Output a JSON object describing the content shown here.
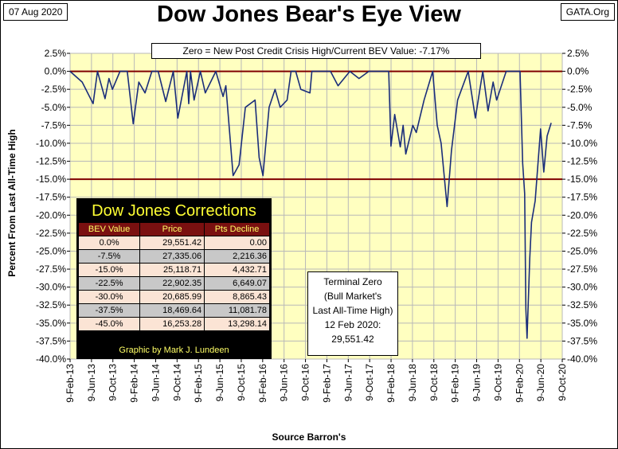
{
  "header": {
    "date": "07 Aug 2020",
    "title": "Dow Jones Bear's Eye View",
    "site": "GATA.Org"
  },
  "chart_data": {
    "type": "line",
    "title": "Dow Jones Bear's Eye View",
    "subtitle": "Zero = New Post Credit Crisis High/Current BEV Value:  -7.17%",
    "ylabel": "Percent From Last All-Time High",
    "xlabel": "Source Barron's",
    "ylim": [
      -40,
      2.5
    ],
    "y_ticks": [
      "2.5%",
      "0.0%",
      "-2.5%",
      "-5.0%",
      "-7.5%",
      "-10.0%",
      "-12.5%",
      "-15.0%",
      "-17.5%",
      "-20.0%",
      "-22.5%",
      "-25.0%",
      "-27.5%",
      "-30.0%",
      "-32.5%",
      "-35.0%",
      "-37.5%",
      "-40.0%"
    ],
    "y_tick_values": [
      2.5,
      0,
      -2.5,
      -5,
      -7.5,
      -10,
      -12.5,
      -15,
      -17.5,
      -20,
      -22.5,
      -25,
      -27.5,
      -30,
      -32.5,
      -35,
      -37.5,
      -40
    ],
    "x_ticks": [
      "9-Feb-13",
      "9-Jun-13",
      "9-Oct-13",
      "9-Feb-14",
      "9-Jun-14",
      "9-Oct-14",
      "9-Feb-15",
      "9-Jun-15",
      "9-Oct-15",
      "9-Feb-16",
      "9-Jun-16",
      "9-Oct-16",
      "9-Feb-17",
      "9-Jun-17",
      "9-Oct-17",
      "9-Feb-18",
      "9-Jun-18",
      "9-Oct-18",
      "9-Feb-19",
      "9-Jun-19",
      "9-Oct-19",
      "9-Feb-20",
      "9-Jun-20",
      "9-Oct-20"
    ],
    "x_range": [
      "2013-02-09",
      "2020-10-09"
    ],
    "reference_lines": [
      0,
      -15
    ],
    "grid": true,
    "background": "#ffffc0",
    "line_color": "#1a2d7a",
    "ref_line_color": "#800000",
    "series": [
      {
        "x": [
          "2013-02-09",
          "2013-04-19",
          "2013-06-20",
          "2013-07-15",
          "2013-08-27",
          "2013-09-18",
          "2013-10-08",
          "2013-11-20",
          "2013-12-31",
          "2014-02-03",
          "2014-03-07",
          "2014-04-11",
          "2014-05-20",
          "2014-06-25",
          "2014-08-07",
          "2014-09-19",
          "2014-10-15",
          "2014-12-05",
          "2014-12-16",
          "2014-12-26",
          "2015-01-15",
          "2015-02-20",
          "2015-03-20",
          "2015-05-19",
          "2015-06-29",
          "2015-07-15",
          "2015-08-25",
          "2015-09-28",
          "2015-11-03",
          "2015-12-28",
          "2016-01-20",
          "2016-02-11",
          "2016-03-17",
          "2016-04-20",
          "2016-05-19",
          "2016-06-27",
          "2016-07-20",
          "2016-08-15",
          "2016-09-13",
          "2016-11-04",
          "2016-11-15",
          "2017-01-25",
          "2017-03-01",
          "2017-04-13",
          "2017-06-19",
          "2017-08-10",
          "2017-10-05",
          "2017-11-20",
          "2018-01-26",
          "2018-02-08",
          "2018-03-01",
          "2018-04-02",
          "2018-04-18",
          "2018-05-03",
          "2018-06-12",
          "2018-07-02",
          "2018-08-15",
          "2018-10-03",
          "2018-10-29",
          "2018-11-20",
          "2018-12-24",
          "2019-01-18",
          "2019-02-22",
          "2019-04-23",
          "2019-06-03",
          "2019-07-15",
          "2019-08-14",
          "2019-09-12",
          "2019-10-02",
          "2019-11-25",
          "2020-01-17",
          "2020-02-12",
          "2020-02-27",
          "2020-03-09",
          "2020-03-16",
          "2020-03-23",
          "2020-04-07",
          "2020-04-17",
          "2020-05-08",
          "2020-06-08",
          "2020-06-26",
          "2020-07-15",
          "2020-08-07"
        ],
        "y": [
          0.0,
          -1.5,
          -4.5,
          0.0,
          -3.8,
          -1.0,
          -2.5,
          0.0,
          0.0,
          -7.3,
          -1.5,
          -3.0,
          0.0,
          0.0,
          -4.2,
          0.0,
          -6.5,
          0.0,
          -4.5,
          0.0,
          -4.0,
          0.0,
          -3.0,
          0.0,
          -3.5,
          -2.0,
          -14.5,
          -13.0,
          -5.0,
          -4.0,
          -12.0,
          -14.5,
          -5.0,
          -2.5,
          -5.0,
          -4.0,
          0.0,
          0.0,
          -2.5,
          -3.0,
          0.0,
          0.0,
          0.0,
          -2.0,
          0.0,
          -1.0,
          0.0,
          0.0,
          0.0,
          -10.4,
          -6.0,
          -10.5,
          -7.5,
          -11.5,
          -7.5,
          -8.5,
          -4.0,
          0.0,
          -7.5,
          -10.0,
          -18.8,
          -11.0,
          -4.0,
          0.0,
          -6.5,
          0.0,
          -5.5,
          -1.5,
          -4.0,
          0.0,
          0.0,
          0.0,
          -12.8,
          -17.0,
          -33.0,
          -37.1,
          -26.0,
          -21.0,
          -18.0,
          -8.0,
          -14.0,
          -9.0,
          -7.17
        ]
      }
    ],
    "table": {
      "title": "Dow Jones Corrections",
      "columns": [
        "BEV Value",
        "Price",
        "Pts Decline"
      ],
      "rows": [
        [
          "0.0%",
          "29,551.42",
          "0.00"
        ],
        [
          "-7.5%",
          "27,335.06",
          "2,216.36"
        ],
        [
          "-15.0%",
          "25,118.71",
          "4,432.71"
        ],
        [
          "-22.5%",
          "22,902.35",
          "6,649.07"
        ],
        [
          "-30.0%",
          "20,685.99",
          "8,865.43"
        ],
        [
          "-37.5%",
          "18,469.64",
          "11,081.78"
        ],
        [
          "-45.0%",
          "16,253.28",
          "13,298.14"
        ]
      ],
      "credit": "Graphic by Mark J. Lundeen"
    },
    "annotation": {
      "lines": [
        "Terminal Zero",
        "(Bull Market's",
        "Last All-Time High)",
        "12 Feb 2020:",
        "29,551.42"
      ]
    }
  }
}
